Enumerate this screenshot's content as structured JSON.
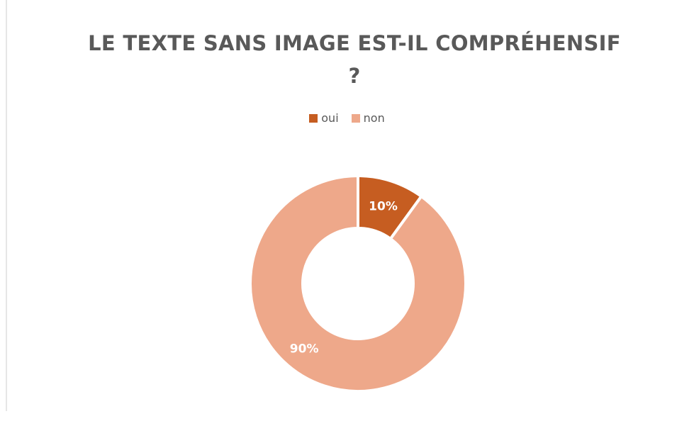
{
  "chart_data": {
    "type": "pie",
    "variant": "donut",
    "title": "LE TEXTE SANS IMAGE EST-IL COMPRÉHENSIF\n?",
    "categories": [
      "oui",
      "non"
    ],
    "values": [
      10,
      90
    ],
    "data_labels": [
      "10%",
      "90%"
    ],
    "colors": [
      "#c65d21",
      "#eea88a"
    ],
    "legend_position": "top"
  }
}
